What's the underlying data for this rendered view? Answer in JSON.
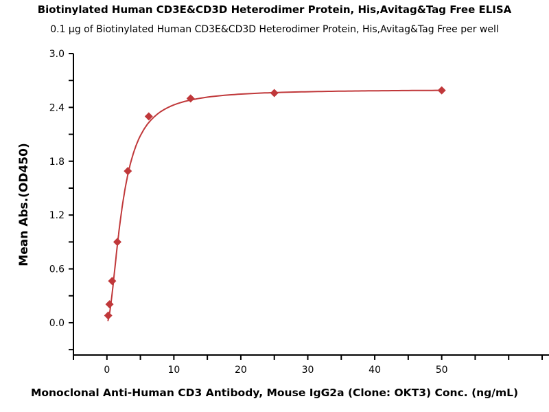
{
  "chart_data": {
    "type": "scatter",
    "title": "Biotinylated Human CD3E&CD3D Heterodimer Protein, His,Avitag&Tag Free ELISA",
    "subtitle": "0.1 μg of Biotinylated Human CD3E&CD3D Heterodimer Protein, His,Avitag&Tag Free per well",
    "xlabel": "Monoclonal Anti-Human CD3 Antibody, Mouse IgG2a (Clone: OKT3) Conc. (ng/mL)",
    "ylabel": "Mean Abs.(OD450)",
    "xlim": [
      -5,
      65
    ],
    "ylim": [
      -0.36,
      3.0
    ],
    "xticks": [
      0,
      10,
      20,
      30,
      40,
      50
    ],
    "xtick_labels": [
      "0",
      "10",
      "20",
      "30",
      "40",
      "50"
    ],
    "yticks": [
      0.0,
      0.6,
      1.2,
      1.8,
      2.4,
      3.0
    ],
    "ytick_labels": [
      "0.0",
      "0.6",
      "1.2",
      "1.8",
      "2.4",
      "3.0"
    ],
    "series": [
      {
        "name": "OD450",
        "color": "#c0383a",
        "marker": "diamond",
        "x": [
          0.195,
          0.39,
          0.78,
          1.56,
          3.125,
          6.25,
          12.5,
          25,
          50
        ],
        "y": [
          0.08,
          0.205,
          0.465,
          0.9,
          1.69,
          2.3,
          2.5,
          2.56,
          2.59
        ]
      }
    ],
    "grid": false,
    "fit": "4-parameter logistic curve"
  }
}
